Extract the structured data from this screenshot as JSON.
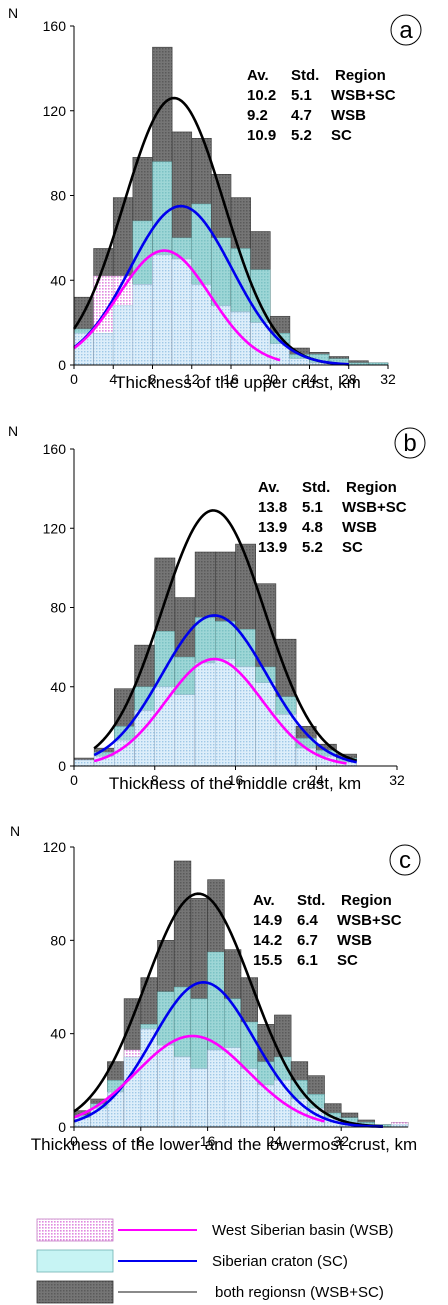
{
  "colors": {
    "total_bar": "#6f6f6f",
    "total_bar_border": "#3a3a3a",
    "sc_bar": "#8fd0d0",
    "wsb_bar": "#f3c8f3",
    "overlap_bar": "#c6e2f2",
    "wsb_curve": "#ff00ff",
    "sc_curve": "#0000ee",
    "total_curve": "#000000",
    "legend_line_total": "#8a8a8a"
  },
  "legend": {
    "wsb": "West Siberian basin (WSB)",
    "sc": "Siberian craton (SC)",
    "both": "both regionsn (WSB+SC)"
  },
  "chart_data": [
    {
      "type": "bar",
      "panel": "a",
      "ylabel": "N",
      "xlabel": "Thickness of the upper crust, km",
      "xlim": [
        0,
        32
      ],
      "ylim": [
        0,
        160
      ],
      "xticks": [
        0,
        4,
        8,
        12,
        16,
        20,
        24,
        28,
        32
      ],
      "yticks": [
        0,
        40,
        80,
        120,
        160
      ],
      "bin_width": 2,
      "bin_starts": [
        0,
        2,
        4,
        6,
        8,
        10,
        12,
        14,
        16,
        18,
        20,
        22,
        24,
        26,
        28,
        30
      ],
      "series": [
        {
          "name": "both regionsn (WSB+SC)",
          "values": [
            32,
            55,
            79,
            98,
            150,
            110,
            107,
            90,
            79,
            63,
            23,
            8,
            6,
            4,
            2,
            1
          ]
        },
        {
          "name": "Siberian craton (SC)",
          "values": [
            17,
            15,
            28,
            68,
            96,
            60,
            76,
            60,
            55,
            45,
            15,
            5,
            5,
            3,
            1,
            1
          ]
        },
        {
          "name": "West Siberian basin (WSB)",
          "values": [
            15,
            42,
            42,
            38,
            52,
            50,
            38,
            28,
            25,
            20,
            10,
            3,
            1,
            1,
            0,
            0
          ]
        }
      ],
      "curves": [
        {
          "name": "both regionsn (WSB+SC)",
          "mean": 10.2,
          "std": 5.1,
          "peak": 126,
          "x_range": [
            0,
            28
          ]
        },
        {
          "name": "Siberian craton (SC)",
          "mean": 10.9,
          "std": 5.2,
          "peak": 75,
          "x_range": [
            0,
            28
          ]
        },
        {
          "name": "West Siberian basin (WSB)",
          "mean": 9.2,
          "std": 4.7,
          "peak": 54,
          "x_range": [
            0,
            21
          ]
        }
      ],
      "stats_header": [
        "Av.",
        "Std.",
        "Region"
      ],
      "stats": [
        [
          "10.2",
          "5.1",
          "WSB+SC"
        ],
        [
          "9.2",
          "4.7",
          "WSB"
        ],
        [
          "10.9",
          "5.2",
          "SC"
        ]
      ]
    },
    {
      "type": "bar",
      "panel": "b",
      "ylabel": "N",
      "xlabel": "Thickness of the middle crust, km",
      "xlim": [
        0,
        32
      ],
      "ylim": [
        0,
        160
      ],
      "xticks": [
        0,
        8,
        16,
        24,
        32
      ],
      "yticks": [
        0,
        40,
        80,
        120,
        160
      ],
      "bin_width": 2,
      "bin_starts": [
        0,
        2,
        4,
        6,
        8,
        10,
        12,
        14,
        16,
        18,
        20,
        22,
        24,
        26
      ],
      "series": [
        {
          "name": "both regionsn (WSB+SC)",
          "values": [
            4,
            9,
            39,
            61,
            105,
            85,
            108,
            108,
            112,
            92,
            64,
            20,
            11,
            6
          ]
        },
        {
          "name": "Siberian craton (SC)",
          "values": [
            3,
            7,
            20,
            40,
            68,
            55,
            75,
            73,
            69,
            50,
            35,
            14,
            8,
            4
          ]
        },
        {
          "name": "West Siberian basin (WSB)",
          "values": [
            3,
            5,
            13,
            28,
            40,
            36,
            52,
            54,
            50,
            42,
            26,
            9,
            5,
            2
          ]
        }
      ],
      "curves": [
        {
          "name": "both regionsn (WSB+SC)",
          "mean": 13.8,
          "std": 5.1,
          "peak": 129,
          "x_range": [
            2,
            28
          ]
        },
        {
          "name": "Siberian craton (SC)",
          "mean": 13.9,
          "std": 5.2,
          "peak": 76,
          "x_range": [
            2,
            28
          ]
        },
        {
          "name": "West Siberian basin (WSB)",
          "mean": 13.9,
          "std": 4.8,
          "peak": 54,
          "x_range": [
            2,
            27
          ]
        }
      ],
      "stats_header": [
        "Av.",
        "Std.",
        "Region"
      ],
      "stats": [
        [
          "13.8",
          "5.1",
          "WSB+SC"
        ],
        [
          "13.9",
          "4.8",
          "WSB"
        ],
        [
          "13.9",
          "5.2",
          "SC"
        ]
      ]
    },
    {
      "type": "bar",
      "panel": "c",
      "ylabel": "N",
      "xlabel": "Thickness of the lower and the lowermost crust, km",
      "xlim": [
        0,
        40
      ],
      "ylim": [
        0,
        120
      ],
      "xticks": [
        0,
        8,
        16,
        24,
        32
      ],
      "yticks": [
        0,
        40,
        80,
        120
      ],
      "bin_width": 2,
      "bin_starts": [
        0,
        2,
        4,
        6,
        8,
        10,
        12,
        14,
        16,
        18,
        20,
        22,
        24,
        26,
        28,
        30,
        32,
        34,
        36,
        38
      ],
      "series": [
        {
          "name": "both regionsn (WSB+SC)",
          "values": [
            7,
            12,
            28,
            55,
            64,
            80,
            114,
            98,
            106,
            76,
            64,
            44,
            48,
            28,
            22,
            10,
            6,
            3,
            1,
            2
          ]
        },
        {
          "name": "Siberian craton (SC)",
          "values": [
            5,
            10,
            20,
            30,
            44,
            58,
            60,
            55,
            75,
            55,
            45,
            28,
            30,
            20,
            14,
            6,
            4,
            2,
            1,
            1
          ]
        },
        {
          "name": "West Siberian basin (WSB)",
          "values": [
            4,
            8,
            15,
            33,
            42,
            35,
            30,
            25,
            33,
            34,
            25,
            18,
            20,
            12,
            8,
            4,
            2,
            1,
            0,
            2
          ]
        }
      ],
      "curves": [
        {
          "name": "both regionsn (WSB+SC)",
          "mean": 14.9,
          "std": 6.4,
          "peak": 100,
          "x_range": [
            0,
            37
          ]
        },
        {
          "name": "Siberian craton (SC)",
          "mean": 15.5,
          "std": 6.1,
          "peak": 62,
          "x_range": [
            0,
            37
          ]
        },
        {
          "name": "West Siberian basin (WSB)",
          "mean": 14.2,
          "std": 6.7,
          "peak": 39,
          "x_range": [
            0,
            30
          ]
        }
      ],
      "stats_header": [
        "Av.",
        "Std.",
        "Region"
      ],
      "stats": [
        [
          "14.9",
          "6.4",
          "WSB+SC"
        ],
        [
          "14.2",
          "6.7",
          "WSB"
        ],
        [
          "15.5",
          "6.1",
          "SC"
        ]
      ]
    }
  ]
}
